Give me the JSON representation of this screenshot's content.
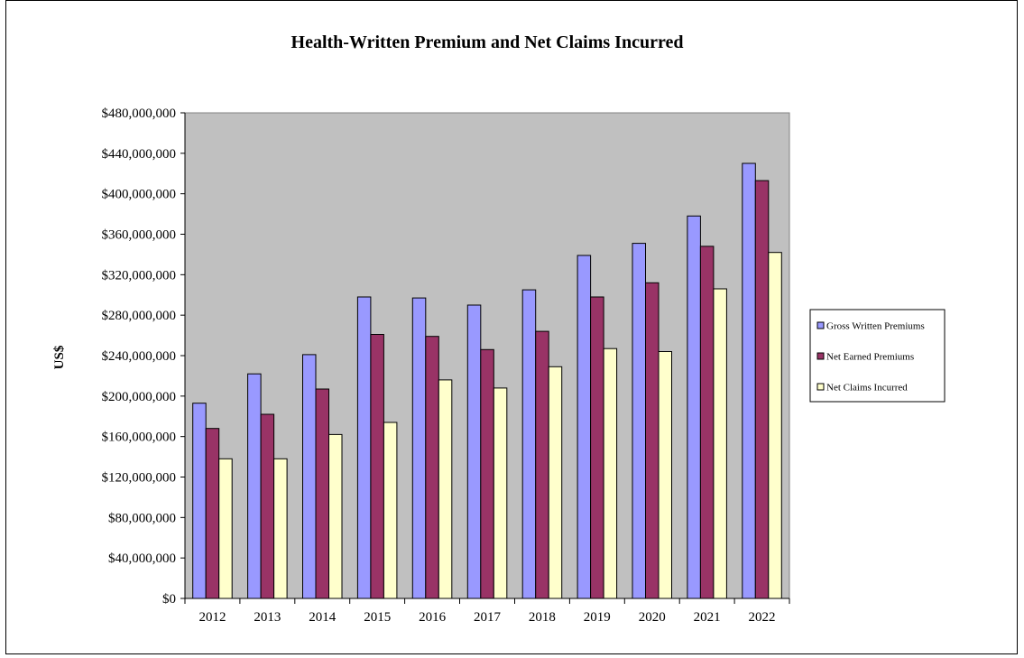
{
  "chart_data": {
    "type": "bar",
    "title": "Health-Written Premium and Net Claims Incurred",
    "ylabel": "US$",
    "xlabel": "",
    "categories": [
      "2012",
      "2013",
      "2014",
      "2015",
      "2016",
      "2017",
      "2018",
      "2019",
      "2020",
      "2021",
      "2022"
    ],
    "ylim": [
      0,
      480000000
    ],
    "yticks": [
      0,
      40000000,
      80000000,
      120000000,
      160000000,
      200000000,
      240000000,
      280000000,
      320000000,
      360000000,
      400000000,
      440000000,
      480000000
    ],
    "ytick_labels": [
      "$0",
      "$40,000,000",
      "$80,000,000",
      "$120,000,000",
      "$160,000,000",
      "$200,000,000",
      "$240,000,000",
      "$280,000,000",
      "$320,000,000",
      "$360,000,000",
      "$400,000,000",
      "$440,000,000",
      "$480,000,000"
    ],
    "series": [
      {
        "name": "Gross Written Premiums",
        "color": "#9999ff",
        "values": [
          193000000,
          222000000,
          241000000,
          298000000,
          297000000,
          290000000,
          305000000,
          339000000,
          351000000,
          378000000,
          430000000
        ]
      },
      {
        "name": "Net Earned Premiums",
        "color": "#993366",
        "values": [
          168000000,
          182000000,
          207000000,
          261000000,
          259000000,
          246000000,
          264000000,
          298000000,
          312000000,
          348000000,
          413000000
        ]
      },
      {
        "name": "Net Claims Incurred",
        "color": "#ffffcc",
        "values": [
          138000000,
          138000000,
          162000000,
          174000000,
          216000000,
          208000000,
          229000000,
          247000000,
          244000000,
          306000000,
          342000000
        ]
      }
    ],
    "plot_background": "#c0c0c0",
    "legend_position": "right",
    "grid": false
  }
}
